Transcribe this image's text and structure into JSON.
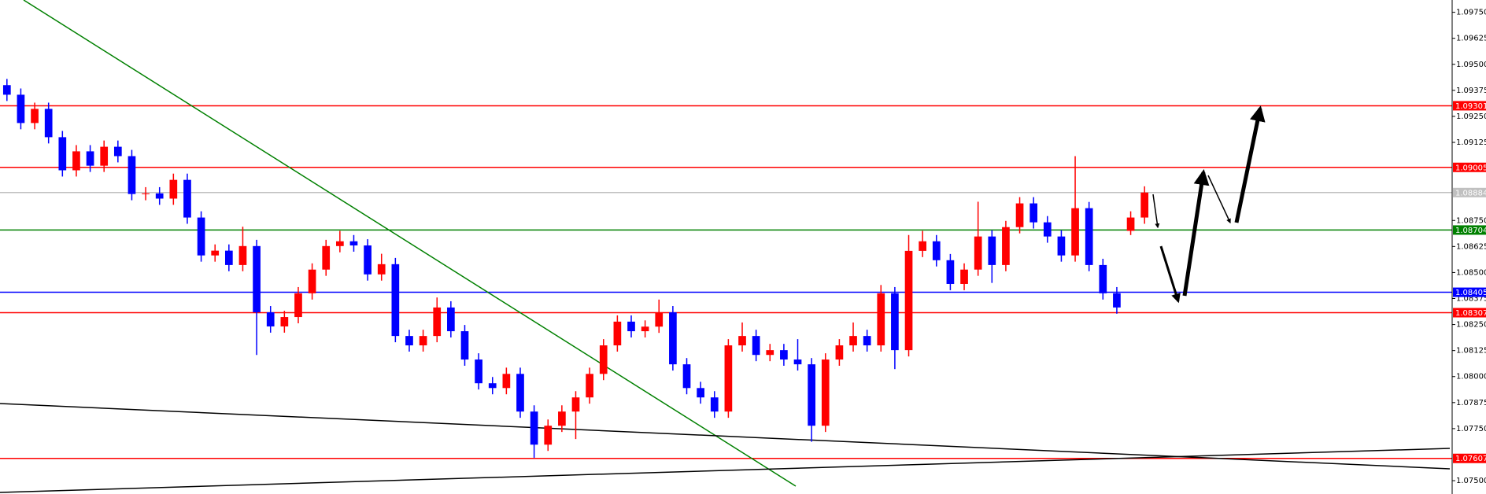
{
  "chart_data": {
    "type": "candlestick",
    "up_color": "#ff0000",
    "down_color": "#0000ff",
    "ylim": [
      1.07436,
      1.09809
    ],
    "yticks": [
      {
        "value": 1.0975,
        "label": "1.09750"
      },
      1.09625,
      {
        "value": 1.095,
        "label": "1.09500"
      },
      1.09375,
      {
        "value": 1.0925,
        "label": "1.09250"
      },
      1.09125,
      {
        "value": 1.0875,
        "label": "1.08750"
      },
      1.08625,
      {
        "value": 1.085,
        "label": "1.08500"
      },
      1.08375,
      {
        "value": 1.0825,
        "label": "1.08250"
      },
      1.08125,
      {
        "value": 1.08,
        "label": "1.08000"
      },
      1.07875,
      {
        "value": 1.0775,
        "label": "1.07750"
      },
      {
        "value": 1.075,
        "label": "1.07500"
      }
    ],
    "levels": [
      {
        "value": 1.09301,
        "color": "#ff0000"
      },
      {
        "value": 1.09005,
        "color": "#ff0000"
      },
      {
        "value": 1.08884,
        "color": "#c0c0c0"
      },
      {
        "value": 1.08704,
        "color": "#008000"
      },
      {
        "value": 1.08405,
        "color": "#0000ff"
      },
      {
        "value": 1.08307,
        "color": "#ff0000"
      },
      {
        "value": 1.07607,
        "color": "#ff0000"
      }
    ],
    "open": [
      1.094,
      1.09354,
      1.09218,
      1.09286,
      1.0915,
      1.08991,
      1.09082,
      1.09013,
      1.09104,
      1.09059,
      1.08877,
      1.0888,
      1.08855,
      1.08945,
      1.08764,
      1.08582,
      1.08605,
      1.08536,
      1.08627,
      1.08309,
      1.08241,
      1.08286,
      1.084,
      1.08514,
      1.08627,
      1.0865,
      1.0863,
      1.08491,
      1.0854,
      1.08195,
      1.0815,
      1.08195,
      1.08332,
      1.08218,
      1.08082,
      1.07968,
      1.07945,
      1.08013,
      1.07832,
      1.07673,
      1.07764,
      1.07832,
      1.079,
      1.08013,
      1.0815,
      1.08264,
      1.08218,
      1.0824,
      1.08309,
      1.08059,
      1.07945,
      1.079,
      1.07832,
      1.0815,
      1.08195,
      1.08104,
      1.08127,
      1.08082,
      1.08059,
      1.07764,
      1.08082,
      1.0815,
      1.08195,
      1.0815,
      1.084,
      1.08127,
      1.08604,
      1.0865,
      1.08559,
      1.08445,
      1.08514,
      1.08673,
      1.08536,
      1.08718,
      1.08832,
      1.08741,
      1.08673,
      1.08582,
      1.08809,
      1.08536,
      1.084,
      1.087,
      1.08764
    ],
    "high": [
      1.0943,
      1.09384,
      1.09316,
      1.09316,
      1.0918,
      1.09112,
      1.09112,
      1.09134,
      1.09134,
      1.09089,
      1.0891,
      1.0891,
      1.08975,
      1.08975,
      1.08794,
      1.08635,
      1.08635,
      1.0872,
      1.08657,
      1.08339,
      1.08316,
      1.0843,
      1.08544,
      1.08657,
      1.087,
      1.0868,
      1.0866,
      1.0859,
      1.0857,
      1.08225,
      1.08225,
      1.0838,
      1.08362,
      1.08248,
      1.08112,
      1.07998,
      1.08043,
      1.08043,
      1.07862,
      1.07794,
      1.07862,
      1.0793,
      1.08043,
      1.0818,
      1.08294,
      1.08294,
      1.0827,
      1.0837,
      1.08339,
      1.08089,
      1.07975,
      1.0793,
      1.0818,
      1.0826,
      1.08225,
      1.08157,
      1.08157,
      1.0818,
      1.08089,
      1.08112,
      1.0818,
      1.0826,
      1.08225,
      1.0844,
      1.0843,
      1.0868,
      1.087,
      1.0868,
      1.08589,
      1.08544,
      1.0884,
      1.08703,
      1.08748,
      1.08862,
      1.08862,
      1.08771,
      1.08703,
      1.09059,
      1.08839,
      1.08566,
      1.0843,
      1.08794,
      1.08914
    ],
    "low": [
      1.09324,
      1.09188,
      1.09188,
      1.0912,
      1.08961,
      1.08961,
      1.08983,
      1.08983,
      1.09029,
      1.08847,
      1.08847,
      1.08825,
      1.08825,
      1.08734,
      1.08552,
      1.08552,
      1.08506,
      1.08506,
      1.08104,
      1.08211,
      1.08211,
      1.08256,
      1.0837,
      1.08484,
      1.08597,
      1.086,
      1.08461,
      1.08461,
      1.08165,
      1.0812,
      1.0812,
      1.08165,
      1.08188,
      1.08052,
      1.07938,
      1.07915,
      1.07915,
      1.07802,
      1.0761,
      1.07643,
      1.07734,
      1.077,
      1.0787,
      1.07983,
      1.0812,
      1.08188,
      1.08188,
      1.0821,
      1.08029,
      1.07915,
      1.0787,
      1.07802,
      1.07802,
      1.0812,
      1.08074,
      1.08074,
      1.08052,
      1.08029,
      1.07687,
      1.07734,
      1.08052,
      1.0812,
      1.0812,
      1.0812,
      1.08036,
      1.08097,
      1.08574,
      1.08529,
      1.08415,
      1.08415,
      1.08484,
      1.0845,
      1.08506,
      1.08688,
      1.08711,
      1.08643,
      1.08552,
      1.08552,
      1.08506,
      1.0837,
      1.08302,
      1.0868,
      1.08734
    ],
    "close": [
      1.09354,
      1.09218,
      1.09286,
      1.0915,
      1.08991,
      1.09082,
      1.09013,
      1.09104,
      1.09059,
      1.08877,
      1.0888,
      1.08855,
      1.08945,
      1.08764,
      1.08582,
      1.08605,
      1.08536,
      1.08627,
      1.08309,
      1.08241,
      1.08286,
      1.084,
      1.08514,
      1.08627,
      1.0865,
      1.0863,
      1.08491,
      1.0854,
      1.08195,
      1.0815,
      1.08195,
      1.08332,
      1.08218,
      1.08082,
      1.07968,
      1.07945,
      1.08013,
      1.07832,
      1.07673,
      1.07764,
      1.07832,
      1.079,
      1.08013,
      1.0815,
      1.08264,
      1.08218,
      1.0824,
      1.08309,
      1.08059,
      1.07945,
      1.079,
      1.07832,
      1.0815,
      1.08195,
      1.08104,
      1.08127,
      1.08082,
      1.08059,
      1.07764,
      1.08082,
      1.0815,
      1.08195,
      1.0815,
      1.084,
      1.08127,
      1.08604,
      1.0865,
      1.08559,
      1.08445,
      1.08514,
      1.08673,
      1.08536,
      1.08718,
      1.08832,
      1.08741,
      1.08673,
      1.08582,
      1.08809,
      1.08536,
      1.084,
      1.08332,
      1.08764,
      1.08884
    ]
  }
}
